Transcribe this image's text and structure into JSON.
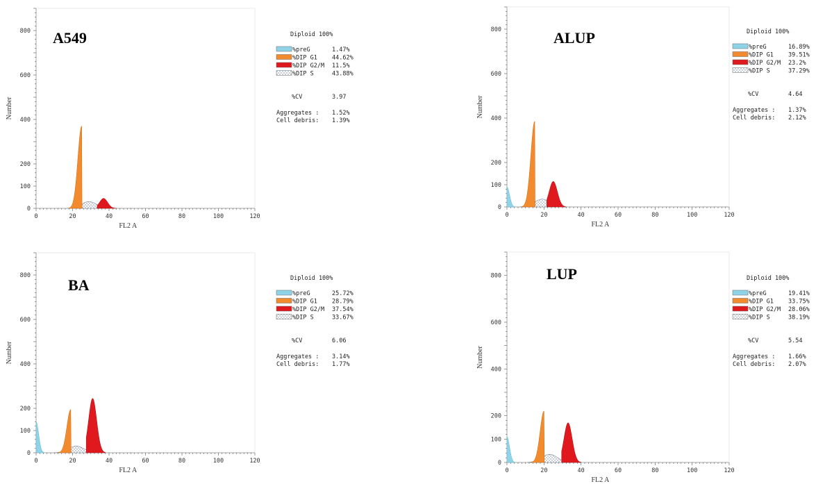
{
  "chart_data": [
    {
      "type": "histogram",
      "title": "A549",
      "xlabel": "FL2 A",
      "ylabel": "Number",
      "xlim": [
        0,
        120
      ],
      "ylim": [
        0,
        900
      ],
      "x_ticks": [
        0,
        20,
        40,
        60,
        80,
        100,
        120
      ],
      "y_ticks": [
        0,
        100,
        200,
        400,
        600,
        800
      ],
      "peaks": {
        "preG": {
          "center": 0,
          "height": 0
        },
        "g1": {
          "center": 25,
          "height": 370
        },
        "s": {
          "center": 29,
          "height": 30
        },
        "g2m": {
          "center": 37,
          "height": 45
        }
      },
      "stats": {
        "header": "Diploid 100%",
        "legend": [
          {
            "key": "preG",
            "label": "%preG",
            "value": "1.47%",
            "color": "#8fd3e8"
          },
          {
            "key": "g1",
            "label": "%DIP G1",
            "value": "44.62%",
            "color": "#f28a2e"
          },
          {
            "key": "g2m",
            "label": "%DIP G2/M",
            "value": "11.5%",
            "color": "#e0191e"
          },
          {
            "key": "s",
            "label": "%DIP S",
            "value": "43.88%",
            "color": "#ffffff"
          }
        ],
        "cv_label": "%CV",
        "cv_value": "3.97",
        "aggregates_label": "Aggregates :",
        "aggregates_value": "1.52%",
        "debris_label": "Cell debris:",
        "debris_value": "1.39%"
      }
    },
    {
      "type": "histogram",
      "title": "ALUP",
      "xlabel": "FL2 A",
      "ylabel": "Number",
      "xlim": [
        0,
        120
      ],
      "ylim": [
        0,
        900
      ],
      "x_ticks": [
        0,
        20,
        40,
        60,
        80,
        100,
        120
      ],
      "y_ticks": [
        0,
        100,
        200,
        400,
        600,
        800
      ],
      "peaks": {
        "preG": {
          "center": 0,
          "height": 90
        },
        "g1": {
          "center": 15,
          "height": 385
        },
        "s": {
          "center": 19,
          "height": 35
        },
        "g2m": {
          "center": 25,
          "height": 115
        }
      },
      "stats": {
        "header": "Diploid 100%",
        "legend": [
          {
            "key": "preG",
            "label": "%preG",
            "value": "16.89%",
            "color": "#8fd3e8"
          },
          {
            "key": "g1",
            "label": "%DIP G1",
            "value": "39.51%",
            "color": "#f28a2e"
          },
          {
            "key": "g2m",
            "label": "%DIP G2/M",
            "value": "23.2%",
            "color": "#e0191e"
          },
          {
            "key": "s",
            "label": "%DIP S",
            "value": "37.29%",
            "color": "#ffffff"
          }
        ],
        "cv_label": "%CV",
        "cv_value": "4.64",
        "aggregates_label": "Aggregates :",
        "aggregates_value": "1.37%",
        "debris_label": "Cell debris:",
        "debris_value": "2.12%"
      }
    },
    {
      "type": "histogram",
      "title": "BA",
      "xlabel": "FL2 A",
      "ylabel": "Number",
      "xlim": [
        0,
        120
      ],
      "ylim": [
        0,
        900
      ],
      "x_ticks": [
        0,
        20,
        40,
        60,
        80,
        100,
        120
      ],
      "y_ticks": [
        0,
        100,
        200,
        400,
        600,
        800
      ],
      "peaks": {
        "preG": {
          "center": 0,
          "height": 140
        },
        "g1": {
          "center": 19,
          "height": 195
        },
        "s": {
          "center": 22,
          "height": 30
        },
        "g2m": {
          "center": 31,
          "height": 245
        }
      },
      "stats": {
        "header": "Diploid 100%",
        "legend": [
          {
            "key": "preG",
            "label": "%preG",
            "value": "25.72%",
            "color": "#8fd3e8"
          },
          {
            "key": "g1",
            "label": "%DIP G1",
            "value": "28.79%",
            "color": "#f28a2e"
          },
          {
            "key": "g2m",
            "label": "%DIP G2/M",
            "value": "37.54%",
            "color": "#e0191e"
          },
          {
            "key": "s",
            "label": "%DIP S",
            "value": "33.67%",
            "color": "#ffffff"
          }
        ],
        "cv_label": "%CV",
        "cv_value": "6.06",
        "aggregates_label": "Aggregates :",
        "aggregates_value": "3.14%",
        "debris_label": "Cell debris:",
        "debris_value": "1.77%"
      }
    },
    {
      "type": "histogram",
      "title": "LUP",
      "xlabel": "FL2 A",
      "ylabel": "Number",
      "xlim": [
        0,
        120
      ],
      "ylim": [
        0,
        900
      ],
      "x_ticks": [
        0,
        20,
        40,
        60,
        80,
        100,
        120
      ],
      "y_ticks": [
        0,
        100,
        200,
        400,
        600,
        800
      ],
      "peaks": {
        "preG": {
          "center": 0,
          "height": 110
        },
        "g1": {
          "center": 20,
          "height": 220
        },
        "s": {
          "center": 23,
          "height": 35
        },
        "g2m": {
          "center": 33,
          "height": 170
        }
      },
      "stats": {
        "header": "Diploid 100%",
        "legend": [
          {
            "key": "preG",
            "label": "%preG",
            "value": "19.41%",
            "color": "#8fd3e8"
          },
          {
            "key": "g1",
            "label": "%DIP G1",
            "value": "33.75%",
            "color": "#f28a2e"
          },
          {
            "key": "g2m",
            "label": "%DIP G2/M",
            "value": "28.06%",
            "color": "#e0191e"
          },
          {
            "key": "s",
            "label": "%DIP S",
            "value": "38.19%",
            "color": "#ffffff"
          }
        ],
        "cv_label": "%CV",
        "cv_value": "5.54",
        "aggregates_label": "Aggregates :",
        "aggregates_value": "1.66%",
        "debris_label": "Cell debris:",
        "debris_value": "2.07%"
      }
    }
  ]
}
